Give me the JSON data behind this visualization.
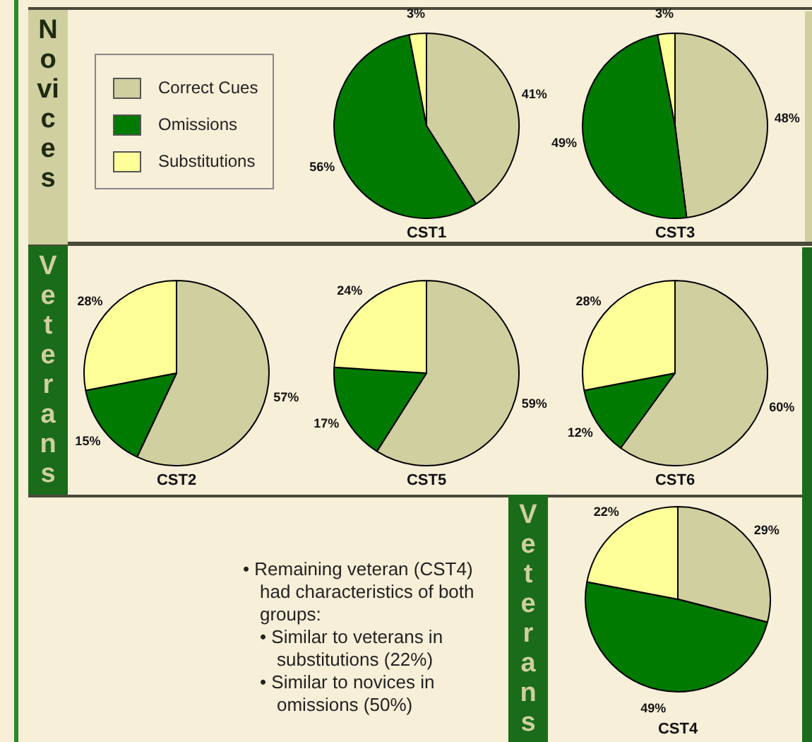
{
  "chart_data": [
    {
      "type": "pie",
      "title": "CST1",
      "subtitle": "Novices",
      "categories": [
        "Correct Cues",
        "Omissions",
        "Substitutions"
      ],
      "values": [
        41,
        56,
        3
      ],
      "colors": [
        "#cfcf9f",
        "#007a00",
        "#ffff99"
      ],
      "value_labels": [
        "41%",
        "56%",
        "3%"
      ],
      "legend": "left"
    },
    {
      "type": "pie",
      "title": "CST3",
      "categories": [
        null,
        null,
        null
      ],
      "values": [
        48,
        49,
        3
      ],
      "colors": [
        "#cfcf9f",
        "#007a00",
        "#ffff99"
      ],
      "value_labels": [
        "48%",
        "49%",
        "3%"
      ]
    },
    {
      "type": "pie",
      "title": "CST2",
      "subtitle": "Veterans",
      "categories": [
        null,
        null,
        null
      ],
      "values": [
        57,
        15,
        28
      ],
      "colors": [
        "#cfcf9f",
        "#007a00",
        "#ffff99"
      ],
      "value_labels": [
        "57%",
        "15%",
        "28%"
      ]
    },
    {
      "type": "pie",
      "title": "CST5",
      "categories": [
        null,
        null,
        null
      ],
      "values": [
        59,
        17,
        24
      ],
      "colors": [
        "#cfcf9f",
        "#007a00",
        "#ffff99"
      ],
      "value_labels": [
        "59%",
        "17%",
        "24%"
      ]
    },
    {
      "type": "pie",
      "title": "CST6",
      "categories": [
        null,
        null,
        null
      ],
      "values": [
        60,
        12,
        28
      ],
      "colors": [
        "#cfcf9f",
        "#007a00",
        "#ffff99"
      ],
      "value_labels": [
        "60%",
        "12%",
        "28%"
      ]
    },
    {
      "type": "pie",
      "title": "CST4",
      "subtitle": "Veterans",
      "categories": [
        null,
        null,
        null
      ],
      "values": [
        29,
        49,
        22
      ],
      "colors": [
        "#cfcf9f",
        "#007a00",
        "#ffff99"
      ],
      "value_labels": [
        "29%",
        "49%",
        "22%"
      ],
      "annotations": [
        "• Remaining veteran (CST4) had characteristics of both groups:",
        "• Similar to veterans in substitutions (22%)",
        "• Similar to novices in omissions (50%)"
      ]
    }
  ]
}
